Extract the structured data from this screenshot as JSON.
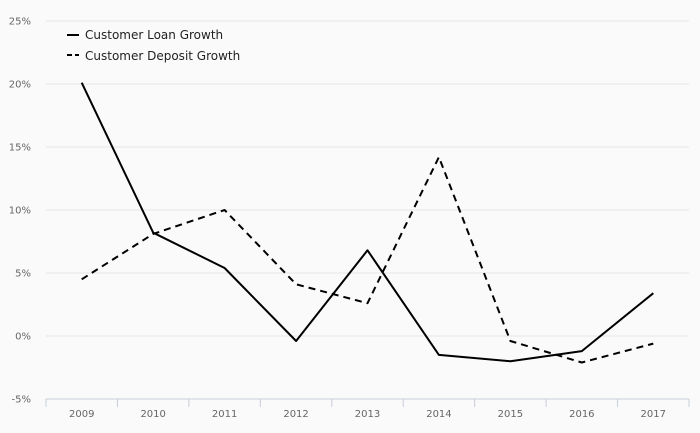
{
  "chart_data": {
    "type": "line",
    "categories": [
      "2009",
      "2010",
      "2011",
      "2012",
      "2013",
      "2014",
      "2015",
      "2016",
      "2017"
    ],
    "series": [
      {
        "name": "Customer Loan Growth",
        "line_style": "solid",
        "color": "#000000",
        "values": [
          20.1,
          8.2,
          5.4,
          -0.4,
          6.8,
          -1.5,
          -2.0,
          -1.2,
          3.4
        ]
      },
      {
        "name": "Customer Deposit Growth",
        "line_style": "dashed",
        "color": "#000000",
        "values": [
          4.5,
          8.1,
          10.0,
          4.1,
          2.6,
          14.2,
          -0.4,
          -2.1,
          -0.6
        ]
      }
    ],
    "y_ticks": [
      "-5%",
      "0%",
      "5%",
      "10%",
      "15%",
      "20%",
      "25%"
    ],
    "ylim": [
      -5,
      25
    ],
    "grid": "horizontal",
    "legend_position": "top-left",
    "colors": {
      "grid": "#e6e6e6",
      "axis": "#c8cdd6",
      "text": "#666666",
      "background": "#fafafb"
    }
  }
}
